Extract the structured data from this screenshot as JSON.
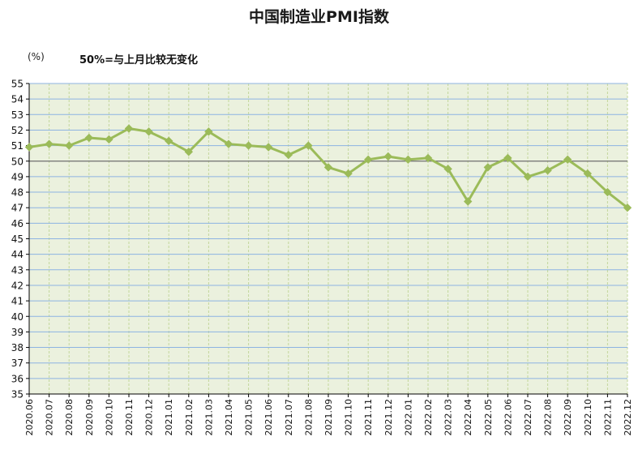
{
  "chart_data": {
    "type": "line",
    "title": "中国制造业PMI指数",
    "unit_label": "(%)",
    "annotation": "50%=与上月比较无变化",
    "ylim": [
      35,
      55
    ],
    "y_ticks": [
      35,
      36,
      37,
      38,
      39,
      40,
      41,
      42,
      43,
      44,
      45,
      46,
      47,
      48,
      49,
      50,
      51,
      52,
      53,
      54,
      55
    ],
    "reference_line": 50,
    "grid": true,
    "categories": [
      "2020.06",
      "2020.07",
      "2020.08",
      "2020.09",
      "2020.10",
      "2020.11",
      "2020.12",
      "2021.01",
      "2021.02",
      "2021.03",
      "2021.04",
      "2021.05",
      "2021.06",
      "2021.07",
      "2021.08",
      "2021.09",
      "2021.10",
      "2021.11",
      "2021.12",
      "2022.01",
      "2022.02",
      "2022.03",
      "2022.04",
      "2022.05",
      "2022.06",
      "2022.07",
      "2022.08",
      "2022.09",
      "2022.10",
      "2022.11",
      "2022.12"
    ],
    "series": [
      {
        "values": [
          50.9,
          51.1,
          51.0,
          51.5,
          51.4,
          52.1,
          51.9,
          51.3,
          50.6,
          51.9,
          51.1,
          51.0,
          50.9,
          50.4,
          51.0,
          49.6,
          49.2,
          50.1,
          50.3,
          50.1,
          50.2,
          49.5,
          47.4,
          49.6,
          50.2,
          49.0,
          49.4,
          50.1,
          49.2,
          48.0,
          47.0
        ]
      }
    ],
    "colors": {
      "plot_background": "#ebf1de",
      "grid_horizontal": "#8db3e2",
      "grid_vertical": "#c3d69b",
      "line": "#9bbb59",
      "reference_line": "#6e6e6e",
      "axis": "#000000"
    }
  }
}
